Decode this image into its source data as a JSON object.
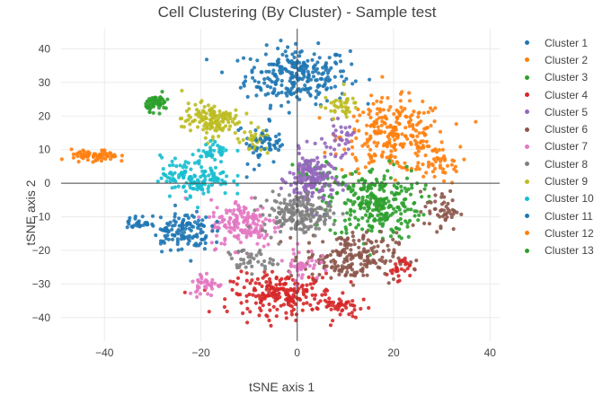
{
  "chart_data": {
    "type": "scatter",
    "title": "Cell Clustering (By Cluster) - Sample test",
    "xlabel": "tSNE axis 1",
    "ylabel": "tSNE axis 2",
    "xlim": [
      -49,
      42
    ],
    "ylim": [
      -47,
      46
    ],
    "x_ticks": [
      -40,
      -20,
      0,
      20,
      40
    ],
    "x_tick_labels": [
      "−40",
      "−20",
      "0",
      "20",
      "40"
    ],
    "y_ticks": [
      -40,
      -30,
      -20,
      -10,
      0,
      10,
      20,
      30,
      40
    ],
    "y_tick_labels": [
      "−40",
      "−30",
      "−20",
      "−10",
      "0",
      "10",
      "20",
      "30",
      "40"
    ],
    "grid": true,
    "zero_lines": true,
    "legend_position": "right",
    "series": [
      {
        "name": "Cluster 1",
        "color": "#1f77b4",
        "regions": [
          [
            0,
            32,
            9,
            7,
            260
          ],
          [
            -8,
            12,
            4,
            5,
            30
          ]
        ]
      },
      {
        "name": "Cluster 2",
        "color": "#ff7f0e",
        "regions": [
          [
            20,
            14,
            9,
            9,
            260
          ],
          [
            29,
            6,
            4,
            4,
            40
          ]
        ]
      },
      {
        "name": "Cluster 3",
        "color": "#2ca02c",
        "regions": [
          [
            16,
            -6,
            8,
            9,
            280
          ],
          [
            4,
            2,
            4,
            4,
            30
          ]
        ]
      },
      {
        "name": "Cluster 4",
        "color": "#d62728",
        "regions": [
          [
            -3,
            -33,
            9,
            5,
            220
          ],
          [
            10,
            -37,
            4,
            3,
            40
          ],
          [
            21,
            -25,
            2,
            3,
            30
          ]
        ]
      },
      {
        "name": "Cluster 5",
        "color": "#9467bd",
        "regions": [
          [
            3,
            1,
            4,
            7,
            180
          ],
          [
            9,
            13,
            2,
            4,
            30
          ]
        ]
      },
      {
        "name": "Cluster 6",
        "color": "#8c564b",
        "regions": [
          [
            11,
            -22,
            8,
            6,
            200
          ],
          [
            30,
            -8,
            3,
            5,
            50
          ]
        ]
      },
      {
        "name": "Cluster 7",
        "color": "#e377c2",
        "regions": [
          [
            -11,
            -12,
            6,
            6,
            160
          ],
          [
            -19,
            -30,
            3,
            3,
            40
          ],
          [
            1,
            -24,
            3,
            4,
            40
          ]
        ]
      },
      {
        "name": "Cluster 8",
        "color": "#7f7f7f",
        "regions": [
          [
            0,
            -9,
            6,
            5,
            180
          ],
          [
            -10,
            -23,
            4,
            3,
            40
          ]
        ]
      },
      {
        "name": "Cluster 9",
        "color": "#bcbd22",
        "regions": [
          [
            -18,
            19,
            5,
            4,
            140
          ],
          [
            9,
            23,
            3,
            3,
            40
          ],
          [
            -9,
            12,
            3,
            3,
            30
          ]
        ]
      },
      {
        "name": "Cluster 10",
        "color": "#17becf",
        "regions": [
          [
            -21,
            2,
            6,
            5,
            150
          ],
          [
            -17,
            10,
            3,
            2,
            30
          ]
        ]
      },
      {
        "name": "Cluster 11",
        "color": "#1f77b4",
        "regions": [
          [
            -24,
            -14,
            5,
            5,
            130
          ],
          [
            -33,
            -12,
            2,
            2,
            25
          ],
          [
            -6,
            12,
            3,
            3,
            30
          ]
        ]
      },
      {
        "name": "Cluster 12",
        "color": "#ff7f0e",
        "regions": [
          [
            -42,
            8,
            4,
            1.6,
            70
          ]
        ]
      },
      {
        "name": "Cluster 13",
        "color": "#2ca02c",
        "regions": [
          [
            -29,
            24,
            2,
            2,
            60
          ]
        ]
      }
    ]
  }
}
